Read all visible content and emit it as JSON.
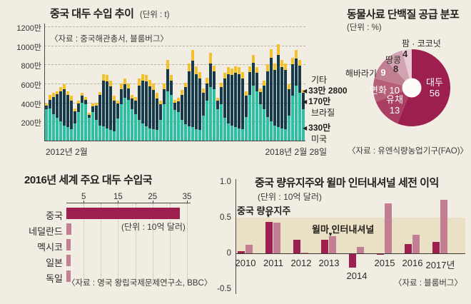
{
  "colors": {
    "background": "#f1ede2",
    "us_teal": "#2fbfa4",
    "brazil_navy": "#16394b",
    "other_yellow": "#f3c12b",
    "maroon_dark": "#9d1f4f",
    "mauve_light": "#c27e93",
    "band_tan": "#e9e0c6",
    "grid_gray": "#b9b3a2",
    "text_dark": "#23211c"
  },
  "chart_data": [
    {
      "id": "china_soybean_imports",
      "type": "bar",
      "stacked": true,
      "title": "중국 대두 수입 추이",
      "unit": "(단위 : t)",
      "source": "〈자료 : 중국해관총서, 블룸버그〉",
      "values_unit": "10000 t (만 t)",
      "ylim": [
        0,
        1200
      ],
      "y_ticks": [
        "1200만",
        "1000만",
        "800만",
        "600만",
        "400만",
        "200만"
      ],
      "x_start_label": "2012년 2월",
      "x_end_label": "2018년 2월 28일",
      "legend": {
        "other_label": "기타",
        "other_value": "33만 2800",
        "brazil_value": "170만",
        "brazil_label": "브라질",
        "us_value": "330만",
        "us_label": "미국"
      },
      "x": [
        "2012-02",
        "2012-03",
        "2012-04",
        "2012-05",
        "2012-06",
        "2012-07",
        "2012-08",
        "2012-09",
        "2012-10",
        "2012-11",
        "2012-12",
        "2013-01",
        "2013-02",
        "2013-03",
        "2013-04",
        "2013-05",
        "2013-06",
        "2013-07",
        "2013-08",
        "2013-09",
        "2013-10",
        "2013-11",
        "2013-12",
        "2014-01",
        "2014-02",
        "2014-03",
        "2014-04",
        "2014-05",
        "2014-06",
        "2014-07",
        "2014-08",
        "2014-09",
        "2014-10",
        "2014-11",
        "2014-12",
        "2015-01",
        "2015-02",
        "2015-03",
        "2015-04",
        "2015-05",
        "2015-06",
        "2015-07",
        "2015-08",
        "2015-09",
        "2015-10",
        "2015-11",
        "2015-12",
        "2016-01",
        "2016-02",
        "2016-03",
        "2016-04",
        "2016-05",
        "2016-06",
        "2016-07",
        "2016-08",
        "2016-09",
        "2016-10",
        "2016-11",
        "2016-12",
        "2017-01",
        "2017-02",
        "2017-03",
        "2017-04",
        "2017-05",
        "2017-06",
        "2017-07",
        "2017-08",
        "2017-09",
        "2017-10",
        "2017-11",
        "2017-12",
        "2018-01",
        "2018-02"
      ],
      "series": [
        {
          "name": "미국",
          "color": "#2fbfa4",
          "values": [
            330,
            340,
            280,
            240,
            200,
            160,
            140,
            120,
            180,
            300,
            400,
            380,
            240,
            300,
            220,
            160,
            150,
            130,
            110,
            100,
            230,
            380,
            450,
            430,
            330,
            280,
            220,
            180,
            150,
            130,
            120,
            110,
            220,
            380,
            520,
            480,
            320,
            300,
            220,
            170,
            150,
            140,
            120,
            110,
            260,
            420,
            560,
            540,
            330,
            380,
            240,
            180,
            160,
            140,
            130,
            120,
            250,
            480,
            580,
            520,
            380,
            330,
            250,
            200,
            160,
            140,
            130,
            120,
            260,
            470,
            580,
            500,
            330
          ]
        },
        {
          "name": "브라질",
          "color": "#16394b",
          "values": [
            40,
            90,
            180,
            250,
            320,
            380,
            340,
            300,
            130,
            90,
            70,
            50,
            30,
            60,
            150,
            320,
            480,
            490,
            460,
            320,
            160,
            160,
            140,
            120,
            110,
            140,
            360,
            450,
            470,
            440,
            410,
            330,
            160,
            160,
            230,
            150,
            80,
            110,
            260,
            390,
            580,
            700,
            580,
            540,
            240,
            180,
            250,
            190,
            90,
            180,
            410,
            520,
            530,
            570,
            570,
            530,
            220,
            240,
            240,
            190,
            130,
            250,
            480,
            670,
            580,
            760,
            640,
            620,
            280,
            330,
            280,
            290,
            170
          ]
        },
        {
          "name": "기타",
          "color": "#f3c12b",
          "values": [
            20,
            50,
            40,
            30,
            40,
            50,
            40,
            50,
            30,
            30,
            30,
            30,
            20,
            30,
            30,
            30,
            70,
            70,
            60,
            50,
            30,
            60,
            60,
            50,
            40,
            40,
            70,
            70,
            70,
            70,
            70,
            60,
            40,
            60,
            100,
            60,
            30,
            40,
            50,
            50,
            80,
            110,
            80,
            70,
            50,
            60,
            110,
            60,
            30,
            50,
            60,
            70,
            70,
            70,
            70,
            70,
            50,
            60,
            80,
            60,
            40,
            50,
            70,
            90,
            70,
            110,
            80,
            70,
            50,
            70,
            90,
            60,
            33
          ]
        }
      ]
    },
    {
      "id": "animal_feed_protein_supply",
      "type": "pie",
      "title": "동물사료 단백질 공급 분포",
      "unit": "(단위 : %)",
      "source": "〈자료 : 유엔식량농업기구(FAO)〉",
      "slices": [
        {
          "label": "대두",
          "value": 56,
          "color": "#9d1f4f"
        },
        {
          "label": "유채",
          "value": 13,
          "color": "#a93f63"
        },
        {
          "label": "면화",
          "value": 10,
          "color": "#b56077"
        },
        {
          "label": "해바라기",
          "value": 9,
          "color": "#c17f92"
        },
        {
          "label": "땅콩",
          "value": 8,
          "color": "#d2a4b2"
        },
        {
          "label": "팜 · 코코넛",
          "value": 4,
          "color": "#e8ccd5"
        }
      ]
    },
    {
      "id": "major_soybean_importers_2016",
      "type": "bar",
      "orientation": "horizontal",
      "title": "2016년 세계 주요 대두 수입국",
      "unit": "(단위 : 10억 달러)",
      "source": "〈자료 : 영국 왕립국제문제연구소, BBC〉",
      "x_ticks": [
        "5",
        "15",
        "25",
        "35"
      ],
      "x_tick_values": [
        5,
        15,
        25,
        35
      ],
      "xlim": [
        0,
        36
      ],
      "categories": [
        "중국",
        "네덜란드",
        "멕시코",
        "일본",
        "독일"
      ],
      "values": [
        33,
        1.4,
        1.3,
        1.2,
        1.2
      ],
      "bar_colors": [
        "#9d1f4f",
        "#c27e93",
        "#c27e93",
        "#c27e93",
        "#c27e93"
      ]
    },
    {
      "id": "pretax_profit",
      "type": "bar",
      "grouped": true,
      "title": "중국 량유지주와 윌마 인터내셔널 세전 이익",
      "unit": "(단위 : 10억 달러)",
      "source": "〈자료 : 블룸버그〉",
      "ylim": [
        -0.5,
        1.0
      ],
      "y_ticks": [
        "1.0",
        "0.5",
        "0",
        "-0.5"
      ],
      "y_tick_values": [
        1.0,
        0.5,
        0,
        -0.5
      ],
      "band": [
        0,
        0.5
      ],
      "categories": [
        "2010",
        "2011",
        "2012",
        "2013",
        "2014",
        "2015",
        "2016",
        "2017년"
      ],
      "series": [
        {
          "name": "중국 량유지주",
          "color": "#9d1f4f",
          "values": [
            0.03,
            0.44,
            0.19,
            0.19,
            -0.2,
            -0.02,
            0.13,
            0.16
          ]
        },
        {
          "name": "윌마 인터내셔널",
          "color": "#c27e93",
          "values": [
            0.12,
            0.43,
            0.015,
            0.24,
            0.09,
            0.7,
            0.26,
            0.75
          ]
        }
      ],
      "annotations": [
        {
          "text": "중국 량유지주",
          "target": "2011 중국 량유지주 bar"
        },
        {
          "text": "윌마 인터내셔널",
          "target": "2013 윌마 인터내셔널 bar"
        }
      ]
    }
  ]
}
